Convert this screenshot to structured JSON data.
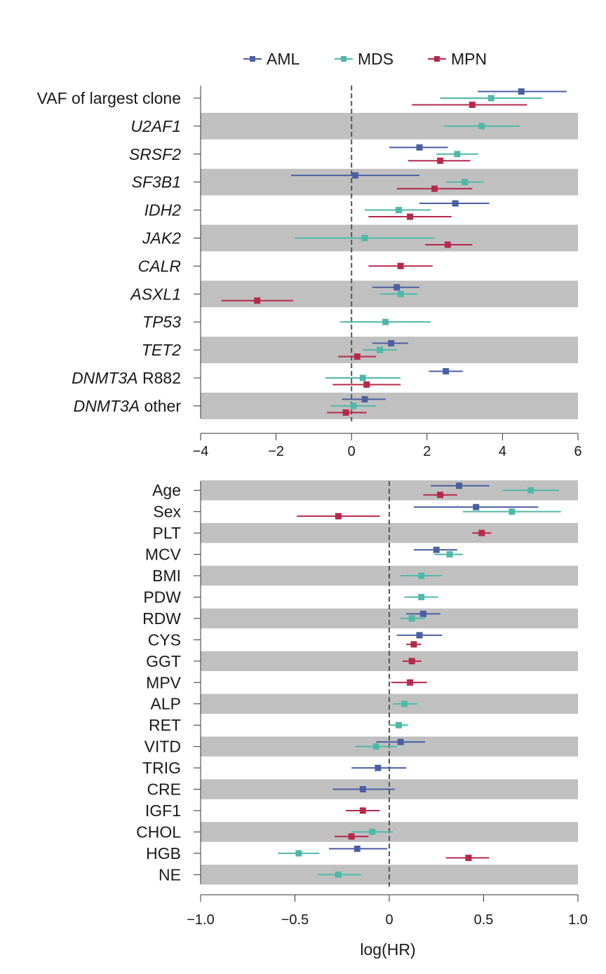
{
  "legend": [
    {
      "name": "AML",
      "color": "#4a5fa3"
    },
    {
      "name": "MDS",
      "color": "#4fb8a8"
    },
    {
      "name": "MPN",
      "color": "#b5294b"
    }
  ],
  "colors": {
    "AML": "#4a5fa3",
    "MDS": "#4fb8a8",
    "MPN": "#b5294b",
    "band": "#c0c0c0",
    "refline": "#555555"
  },
  "chart_data": [
    {
      "type": "forest",
      "title": "",
      "xlabel": "",
      "xlim": [
        -4,
        6
      ],
      "xticks": [
        -4,
        -2,
        0,
        2,
        4,
        6
      ],
      "xtick_labels": [
        "−4",
        "−2",
        "0",
        "2",
        "4",
        "6"
      ],
      "reference_line": 0,
      "rows": [
        {
          "label": "VAF of largest clone",
          "italic": "",
          "suffix": "VAF of largest clone",
          "shaded": false,
          "points": [
            {
              "series": "AML",
              "hr": 4.5,
              "lo": 3.35,
              "hi": 5.7
            },
            {
              "series": "MDS",
              "hr": 3.7,
              "lo": 2.35,
              "hi": 5.05
            },
            {
              "series": "MPN",
              "hr": 3.2,
              "lo": 1.6,
              "hi": 4.65
            }
          ]
        },
        {
          "label": "U2AF1",
          "italic": "U2AF1",
          "suffix": "",
          "shaded": true,
          "points": [
            {
              "series": "MDS",
              "hr": 3.45,
              "lo": 2.45,
              "hi": 4.45
            }
          ]
        },
        {
          "label": "SRSF2",
          "italic": "SRSF2",
          "suffix": "",
          "shaded": false,
          "points": [
            {
              "series": "AML",
              "hr": 1.8,
              "lo": 1.0,
              "hi": 2.55
            },
            {
              "series": "MDS",
              "hr": 2.8,
              "lo": 2.25,
              "hi": 3.35
            },
            {
              "series": "MPN",
              "hr": 2.35,
              "lo": 1.5,
              "hi": 3.15
            }
          ]
        },
        {
          "label": "SF3B1",
          "italic": "SF3B1",
          "suffix": "",
          "shaded": true,
          "points": [
            {
              "series": "AML",
              "hr": 0.1,
              "lo": -1.6,
              "hi": 1.8
            },
            {
              "series": "MDS",
              "hr": 3.0,
              "lo": 2.5,
              "hi": 3.5
            },
            {
              "series": "MPN",
              "hr": 2.2,
              "lo": 1.2,
              "hi": 3.2
            }
          ]
        },
        {
          "label": "IDH2",
          "italic": "IDH2",
          "suffix": "",
          "shaded": false,
          "points": [
            {
              "series": "AML",
              "hr": 2.75,
              "lo": 1.8,
              "hi": 3.65
            },
            {
              "series": "MDS",
              "hr": 1.25,
              "lo": 0.35,
              "hi": 2.1
            },
            {
              "series": "MPN",
              "hr": 1.55,
              "lo": 0.45,
              "hi": 2.65
            }
          ]
        },
        {
          "label": "JAK2",
          "italic": "JAK2",
          "suffix": "",
          "shaded": true,
          "points": [
            {
              "series": "MDS",
              "hr": 0.35,
              "lo": -1.5,
              "hi": 2.2
            },
            {
              "series": "MPN",
              "hr": 2.55,
              "lo": 1.95,
              "hi": 3.2
            }
          ]
        },
        {
          "label": "CALR",
          "italic": "CALR",
          "suffix": "",
          "shaded": false,
          "points": [
            {
              "series": "MPN",
              "hr": 1.3,
              "lo": 0.45,
              "hi": 2.15
            }
          ]
        },
        {
          "label": "ASXL1",
          "italic": "ASXL1",
          "suffix": "",
          "shaded": true,
          "points": [
            {
              "series": "AML",
              "hr": 1.2,
              "lo": 0.55,
              "hi": 1.8
            },
            {
              "series": "MDS",
              "hr": 1.3,
              "lo": 0.75,
              "hi": 1.75
            },
            {
              "series": "MPN",
              "hr": -2.5,
              "lo": -3.45,
              "hi": -1.55
            }
          ]
        },
        {
          "label": "TP53",
          "italic": "TP53",
          "suffix": "",
          "shaded": false,
          "points": [
            {
              "series": "MDS",
              "hr": 0.9,
              "lo": -0.3,
              "hi": 2.1
            }
          ]
        },
        {
          "label": "TET2",
          "italic": "TET2",
          "suffix": "",
          "shaded": true,
          "points": [
            {
              "series": "AML",
              "hr": 1.05,
              "lo": 0.55,
              "hi": 1.5
            },
            {
              "series": "MDS",
              "hr": 0.75,
              "lo": 0.3,
              "hi": 1.2
            },
            {
              "series": "MPN",
              "hr": 0.15,
              "lo": -0.35,
              "hi": 0.65
            }
          ]
        },
        {
          "label": "DNMT3A R882",
          "italic": "DNMT3A",
          "suffix": " R882",
          "shaded": false,
          "points": [
            {
              "series": "AML",
              "hr": 2.5,
              "lo": 2.05,
              "hi": 2.95
            },
            {
              "series": "MDS",
              "hr": 0.3,
              "lo": -0.7,
              "hi": 1.3
            },
            {
              "series": "MPN",
              "hr": 0.4,
              "lo": -0.5,
              "hi": 1.3
            }
          ]
        },
        {
          "label": "DNMT3A other",
          "italic": "DNMT3A",
          "suffix": " other",
          "shaded": true,
          "points": [
            {
              "series": "AML",
              "hr": 0.35,
              "lo": -0.25,
              "hi": 0.9
            },
            {
              "series": "MDS",
              "hr": 0.05,
              "lo": -0.55,
              "hi": 0.65
            },
            {
              "series": "MPN",
              "hr": -0.15,
              "lo": -0.65,
              "hi": 0.4
            }
          ]
        }
      ]
    },
    {
      "type": "forest",
      "title": "",
      "xlabel": "log(HR)",
      "xlim": [
        -1.0,
        1.0
      ],
      "xticks": [
        -1.0,
        -0.5,
        0,
        0.5,
        1.0
      ],
      "xtick_labels": [
        "−1.0",
        "−0.5",
        "0",
        "0.5",
        "1.0"
      ],
      "reference_line": 0,
      "rows": [
        {
          "label": "Age",
          "shaded": true,
          "points": [
            {
              "series": "AML",
              "hr": 0.37,
              "lo": 0.22,
              "hi": 0.53
            },
            {
              "series": "MDS",
              "hr": 0.75,
              "lo": 0.6,
              "hi": 0.9
            },
            {
              "series": "MPN",
              "hr": 0.27,
              "lo": 0.18,
              "hi": 0.36
            }
          ]
        },
        {
          "label": "Sex",
          "shaded": false,
          "points": [
            {
              "series": "AML",
              "hr": 0.46,
              "lo": 0.13,
              "hi": 0.79
            },
            {
              "series": "MDS",
              "hr": 0.65,
              "lo": 0.39,
              "hi": 0.91
            },
            {
              "series": "MPN",
              "hr": -0.27,
              "lo": -0.49,
              "hi": -0.05
            }
          ]
        },
        {
          "label": "PLT",
          "shaded": true,
          "points": [
            {
              "series": "MPN",
              "hr": 0.49,
              "lo": 0.44,
              "hi": 0.54
            }
          ]
        },
        {
          "label": "MCV",
          "shaded": false,
          "points": [
            {
              "series": "AML",
              "hr": 0.25,
              "lo": 0.13,
              "hi": 0.36
            },
            {
              "series": "MDS",
              "hr": 0.32,
              "lo": 0.24,
              "hi": 0.39
            }
          ]
        },
        {
          "label": "BMI",
          "shaded": true,
          "points": [
            {
              "series": "MDS",
              "hr": 0.17,
              "lo": 0.06,
              "hi": 0.28
            }
          ]
        },
        {
          "label": "PDW",
          "shaded": false,
          "points": [
            {
              "series": "MDS",
              "hr": 0.17,
              "lo": 0.08,
              "hi": 0.26
            }
          ]
        },
        {
          "label": "RDW",
          "shaded": true,
          "points": [
            {
              "series": "AML",
              "hr": 0.18,
              "lo": 0.09,
              "hi": 0.27
            },
            {
              "series": "MDS",
              "hr": 0.12,
              "lo": 0.06,
              "hi": 0.19
            }
          ]
        },
        {
          "label": "CYS",
          "shaded": false,
          "points": [
            {
              "series": "AML",
              "hr": 0.16,
              "lo": 0.04,
              "hi": 0.28
            },
            {
              "series": "MPN",
              "hr": 0.13,
              "lo": 0.09,
              "hi": 0.17
            }
          ]
        },
        {
          "label": "GGT",
          "shaded": true,
          "points": [
            {
              "series": "MPN",
              "hr": 0.12,
              "lo": 0.07,
              "hi": 0.17
            }
          ]
        },
        {
          "label": "MPV",
          "shaded": false,
          "points": [
            {
              "series": "MPN",
              "hr": 0.11,
              "lo": 0.01,
              "hi": 0.2
            }
          ]
        },
        {
          "label": "ALP",
          "shaded": true,
          "points": [
            {
              "series": "MDS",
              "hr": 0.08,
              "lo": 0.02,
              "hi": 0.15
            }
          ]
        },
        {
          "label": "RET",
          "shaded": false,
          "points": [
            {
              "series": "MDS",
              "hr": 0.05,
              "lo": 0.0,
              "hi": 0.1
            }
          ]
        },
        {
          "label": "VITD",
          "shaded": true,
          "points": [
            {
              "series": "AML",
              "hr": 0.06,
              "lo": -0.07,
              "hi": 0.19
            },
            {
              "series": "MDS",
              "hr": -0.07,
              "lo": -0.18,
              "hi": 0.04
            }
          ]
        },
        {
          "label": "TRIG",
          "shaded": false,
          "points": [
            {
              "series": "AML",
              "hr": -0.06,
              "lo": -0.2,
              "hi": 0.09
            }
          ]
        },
        {
          "label": "CRE",
          "shaded": true,
          "points": [
            {
              "series": "AML",
              "hr": -0.14,
              "lo": -0.3,
              "hi": 0.03
            }
          ]
        },
        {
          "label": "IGF1",
          "shaded": false,
          "points": [
            {
              "series": "MPN",
              "hr": -0.14,
              "lo": -0.23,
              "hi": -0.05
            }
          ]
        },
        {
          "label": "CHOL",
          "shaded": true,
          "points": [
            {
              "series": "MDS",
              "hr": -0.09,
              "lo": -0.2,
              "hi": 0.02
            },
            {
              "series": "MPN",
              "hr": -0.2,
              "lo": -0.29,
              "hi": -0.11
            }
          ]
        },
        {
          "label": "HGB",
          "shaded": false,
          "points": [
            {
              "series": "AML",
              "hr": -0.17,
              "lo": -0.32,
              "hi": -0.01
            },
            {
              "series": "MDS",
              "hr": -0.48,
              "lo": -0.59,
              "hi": -0.37
            },
            {
              "series": "MPN",
              "hr": 0.42,
              "lo": 0.3,
              "hi": 0.53
            }
          ]
        },
        {
          "label": "NE",
          "shaded": true,
          "points": [
            {
              "series": "MDS",
              "hr": -0.27,
              "lo": -0.38,
              "hi": -0.15
            }
          ]
        }
      ]
    }
  ]
}
